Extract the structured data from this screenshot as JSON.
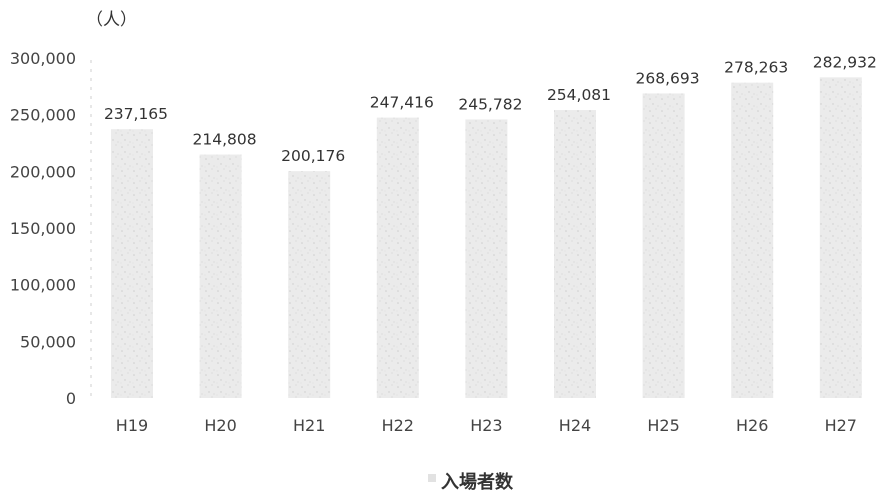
{
  "chart_data": {
    "type": "bar",
    "unit": "（人）",
    "categories": [
      "H19",
      "H20",
      "H21",
      "H22",
      "H23",
      "H24",
      "H25",
      "H26",
      "H27"
    ],
    "series": [
      {
        "name": "入場者数",
        "values": [
          237165,
          214808,
          200176,
          247416,
          245782,
          254081,
          268693,
          278263,
          282932
        ]
      }
    ],
    "value_labels": [
      "237,165",
      "214,808",
      "200,176",
      "247,416",
      "245,782",
      "254,081",
      "268,693",
      "278,263",
      "282,932"
    ],
    "y_ticks": [
      "0",
      "50,000",
      "100,000",
      "150,000",
      "200,000",
      "250,000",
      "300,000"
    ],
    "ylim": [
      0,
      300000
    ],
    "grid": false,
    "legend_position": "bottom",
    "colors": {
      "bar": "#e6e6e6",
      "text": "#333333"
    }
  }
}
